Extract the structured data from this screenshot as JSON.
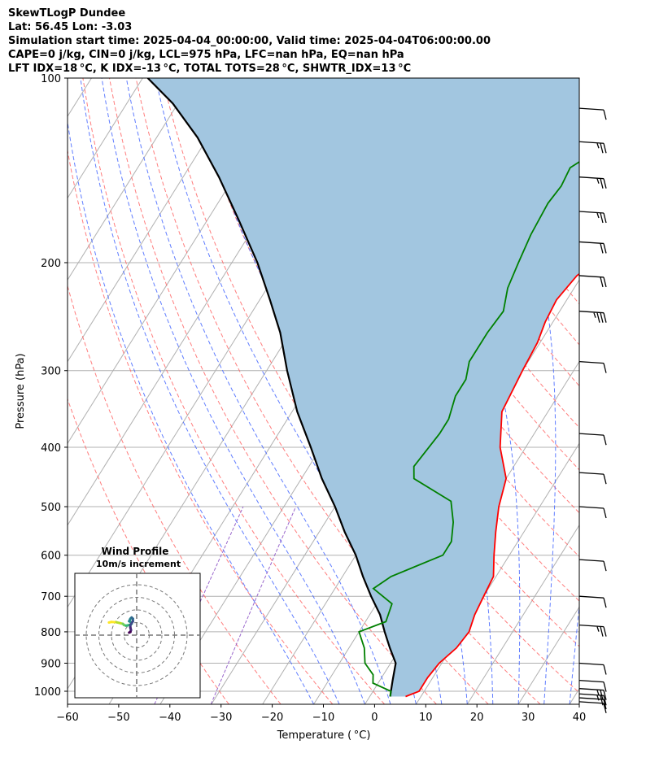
{
  "header": {
    "line1": "SkewTLogP Dundee",
    "line2": "Lat: 56.45   Lon: -3.03",
    "line3": "Simulation start time: 2025-04-04_00:00:00, Valid time: 2025-04-04T06:00:00.00",
    "line4": "CAPE=0 j/kg, CIN=0 j/kg, LCL=975 hPa, LFC=nan hPa, EQ=nan hPa",
    "line5": "LFT IDX=18 °C, K IDX=-13 °C, TOTAL TOTS=28 °C, SHWTR_IDX=13 °C"
  },
  "colors": {
    "temperature": "#ff0000",
    "dewpoint": "#008000",
    "parcel": "#000000",
    "cape_fill": "#a2c6e0",
    "dry_adiabat": "#ff6666",
    "moist_adiabat": "#4466ff",
    "mixing_ratio": "#9966cc",
    "grid": "#b0b0b0"
  },
  "chart_data": [
    {
      "type": "line",
      "subtype": "skew-t log-p",
      "xlabel": "Temperature ( °C)",
      "ylabel": "Pressure (hPa)",
      "xlim": [
        -60,
        40
      ],
      "ylim": [
        1050,
        100
      ],
      "y_scale": "log",
      "x_ticks": [
        "−60",
        "−50",
        "−40",
        "−30",
        "−20",
        "−10",
        "0",
        "10",
        "20",
        "30",
        "40"
      ],
      "y_ticks": [
        "100",
        "200",
        "300",
        "400",
        "500",
        "600",
        "700",
        "800",
        "900",
        "1000"
      ],
      "grid": true,
      "series": [
        {
          "key": "temperature",
          "points": [
            [
              7,
              1020
            ],
            [
              9,
              1000
            ],
            [
              9,
              950
            ],
            [
              9.5,
              900
            ],
            [
              11,
              850
            ],
            [
              11.5,
              800
            ],
            [
              10.5,
              750
            ],
            [
              10,
              700
            ],
            [
              9.5,
              650
            ],
            [
              7,
              600
            ],
            [
              4.5,
              550
            ],
            [
              2,
              500
            ],
            [
              0,
              450
            ],
            [
              -5,
              400
            ],
            [
              -9,
              350
            ],
            [
              -10,
              300
            ],
            [
              -10.5,
              270
            ],
            [
              -11.5,
              250
            ],
            [
              -12,
              230
            ],
            [
              -11,
              210
            ],
            [
              -9,
              200
            ],
            [
              -5,
              180
            ],
            [
              -1,
              160
            ],
            [
              4,
              140
            ],
            [
              8,
              125
            ],
            [
              11,
              110
            ],
            [
              13,
              100
            ]
          ]
        },
        {
          "key": "dewpoint",
          "points": [
            [
              4,
              1020
            ],
            [
              3.5,
              1000
            ],
            [
              -1,
              970
            ],
            [
              -2,
              940
            ],
            [
              -5,
              900
            ],
            [
              -7,
              850
            ],
            [
              -10,
              800
            ],
            [
              -6,
              770
            ],
            [
              -7,
              720
            ],
            [
              -12.5,
              680
            ],
            [
              -10.5,
              650
            ],
            [
              -3,
              600
            ],
            [
              -3,
              570
            ],
            [
              -5,
              530
            ],
            [
              -8,
              490
            ],
            [
              -18,
              450
            ],
            [
              -19.5,
              430
            ],
            [
              -18.5,
              380
            ],
            [
              -18.5,
              360
            ],
            [
              -20,
              330
            ],
            [
              -20,
              310
            ],
            [
              -21.5,
              290
            ],
            [
              -21.5,
              260
            ],
            [
              -21,
              240
            ],
            [
              -23,
              220
            ],
            [
              -24,
              200
            ],
            [
              -25,
              180
            ],
            [
              -25.5,
              160
            ],
            [
              -25,
              150
            ],
            [
              -25.5,
              140
            ],
            [
              -20,
              125
            ],
            [
              -12,
              110
            ],
            [
              -7,
              100
            ]
          ]
        },
        {
          "key": "parcel",
          "points": [
            [
              4,
              1020
            ],
            [
              3.5,
              1000
            ],
            [
              2.5,
              960
            ],
            [
              1,
              900
            ],
            [
              -2,
              850
            ],
            [
              -5,
              800
            ],
            [
              -8,
              750
            ],
            [
              -12,
              700
            ],
            [
              -16,
              650
            ],
            [
              -20,
              600
            ],
            [
              -25,
              550
            ],
            [
              -30,
              500
            ],
            [
              -36,
              450
            ],
            [
              -42,
              400
            ],
            [
              -49,
              350
            ],
            [
              -56,
              300
            ],
            [
              -62,
              260
            ],
            [
              -68,
              230
            ],
            [
              -75,
              200
            ],
            [
              -84,
              170
            ],
            [
              -93,
              145
            ],
            [
              -102,
              125
            ],
            [
              -111,
              110
            ],
            [
              -119,
              100
            ]
          ]
        },
        {
          "key": "wind_barbs",
          "description": "wind barbs along right edge",
          "barbs": [
            {
              "p": 1040,
              "speed_kt": 10
            },
            {
              "p": 1025,
              "speed_kt": 10
            },
            {
              "p": 1010,
              "speed_kt": 15
            },
            {
              "p": 990,
              "speed_kt": 15
            },
            {
              "p": 960,
              "speed_kt": 10
            },
            {
              "p": 900,
              "speed_kt": 10
            },
            {
              "p": 780,
              "speed_kt": 15
            },
            {
              "p": 700,
              "speed_kt": 10
            },
            {
              "p": 610,
              "speed_kt": 10
            },
            {
              "p": 500,
              "speed_kt": 10
            },
            {
              "p": 440,
              "speed_kt": 10
            },
            {
              "p": 380,
              "speed_kt": 10
            },
            {
              "p": 290,
              "speed_kt": 10
            },
            {
              "p": 240,
              "speed_kt": 25
            },
            {
              "p": 210,
              "speed_kt": 20
            },
            {
              "p": 185,
              "speed_kt": 20
            },
            {
              "p": 165,
              "speed_kt": 15
            },
            {
              "p": 145,
              "speed_kt": 15
            },
            {
              "p": 127,
              "speed_kt": 15
            },
            {
              "p": 112,
              "speed_kt": 10
            }
          ]
        }
      ]
    },
    {
      "type": "line",
      "subtype": "hodograph",
      "title": "Wind Profile",
      "subtitle": "10m/s increment",
      "rings_ms": [
        10,
        20,
        30,
        40
      ],
      "series": [
        {
          "key": "hodograph_trace",
          "points_uv": [
            [
              -22,
              10
            ],
            [
              -20,
              10.5
            ],
            [
              -16,
              10.2
            ],
            [
              -13,
              9.5
            ],
            [
              -11,
              9
            ],
            [
              -10,
              8
            ],
            [
              -8.5,
              7.5
            ],
            [
              -6,
              8
            ],
            [
              -4,
              9
            ],
            [
              -4,
              10
            ],
            [
              -6,
              11
            ],
            [
              -5,
              13
            ],
            [
              -4,
              14
            ],
            [
              -3,
              13
            ],
            [
              -3,
              11
            ],
            [
              -5,
              8
            ],
            [
              -5,
              6
            ],
            [
              -4.5,
              4
            ],
            [
              -5,
              2.5
            ],
            [
              -6,
              2
            ]
          ]
        }
      ]
    }
  ]
}
